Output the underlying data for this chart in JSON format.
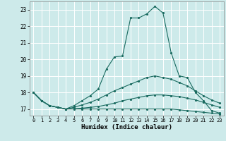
{
  "xlabel": "Humidex (Indice chaleur)",
  "background_color": "#cdeaea",
  "grid_color": "#ffffff",
  "line_color": "#1a6b60",
  "xlim": [
    -0.5,
    23.5
  ],
  "ylim": [
    16.6,
    23.5
  ],
  "xticks": [
    0,
    1,
    2,
    3,
    4,
    5,
    6,
    7,
    8,
    9,
    10,
    11,
    12,
    13,
    14,
    15,
    16,
    17,
    18,
    19,
    20,
    21,
    22,
    23
  ],
  "yticks": [
    17,
    18,
    19,
    20,
    21,
    22,
    23
  ],
  "lines": [
    {
      "x": [
        0,
        1,
        2,
        3,
        4,
        5,
        6,
        7,
        8,
        9,
        10,
        11,
        12,
        13,
        14,
        15,
        16,
        17,
        18,
        19,
        20,
        21,
        22,
        23
      ],
      "y": [
        18.0,
        17.5,
        17.2,
        17.1,
        17.0,
        17.2,
        17.5,
        17.8,
        18.2,
        19.4,
        20.15,
        20.2,
        22.5,
        22.5,
        22.75,
        23.2,
        22.8,
        20.4,
        19.0,
        18.9,
        18.0,
        17.5,
        16.9,
        16.75
      ]
    },
    {
      "x": [
        0,
        1,
        2,
        3,
        4,
        5,
        6,
        7,
        8,
        9,
        10,
        11,
        12,
        13,
        14,
        15,
        16,
        17,
        18,
        19,
        20,
        21,
        22,
        23
      ],
      "y": [
        18.0,
        17.5,
        17.2,
        17.1,
        17.0,
        17.1,
        17.25,
        17.4,
        17.6,
        17.85,
        18.1,
        18.3,
        18.5,
        18.7,
        18.9,
        19.0,
        18.9,
        18.8,
        18.6,
        18.4,
        18.1,
        17.8,
        17.55,
        17.35
      ]
    },
    {
      "x": [
        0,
        1,
        2,
        3,
        4,
        5,
        6,
        7,
        8,
        9,
        10,
        11,
        12,
        13,
        14,
        15,
        16,
        17,
        18,
        19,
        20,
        21,
        22,
        23
      ],
      "y": [
        18.0,
        17.5,
        17.2,
        17.1,
        17.0,
        17.02,
        17.05,
        17.1,
        17.15,
        17.25,
        17.35,
        17.5,
        17.6,
        17.7,
        17.8,
        17.85,
        17.85,
        17.8,
        17.75,
        17.65,
        17.55,
        17.4,
        17.25,
        17.1
      ]
    },
    {
      "x": [
        0,
        1,
        2,
        3,
        4,
        5,
        6,
        7,
        8,
        9,
        10,
        11,
        12,
        13,
        14,
        15,
        16,
        17,
        18,
        19,
        20,
        21,
        22,
        23
      ],
      "y": [
        18.0,
        17.5,
        17.2,
        17.1,
        17.0,
        17.0,
        17.0,
        17.0,
        17.0,
        17.0,
        17.0,
        17.0,
        17.0,
        17.0,
        17.0,
        17.0,
        17.0,
        17.0,
        16.95,
        16.9,
        16.85,
        16.8,
        16.75,
        16.7
      ]
    }
  ]
}
